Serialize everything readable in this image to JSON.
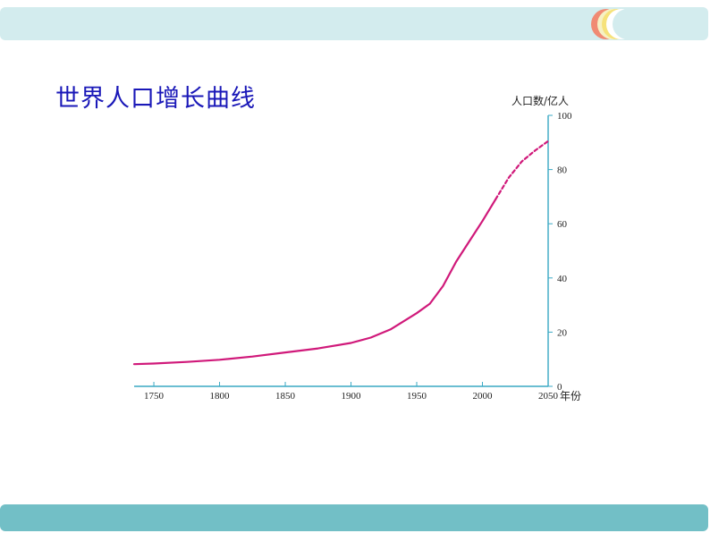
{
  "slide": {
    "title": "世界人口增长曲线",
    "colors": {
      "top_bar": "#d3ecee",
      "bottom_bar": "#72bfc6",
      "title": "#1a18b8",
      "curve": "#d0197a",
      "axis": "#3aa9c4"
    }
  },
  "chart_data": {
    "type": "line",
    "title": "",
    "xlabel": "年份",
    "ylabel": "人口数/亿人",
    "xlim": [
      1735,
      2050
    ],
    "ylim": [
      0,
      100
    ],
    "x_ticks": [
      "1750",
      "1800",
      "1850",
      "1900",
      "1950",
      "2000",
      "2050"
    ],
    "y_ticks": [
      "0",
      "20",
      "40",
      "60",
      "80",
      "100"
    ],
    "y_axis_position": "right",
    "grid": false,
    "series": [
      {
        "style": "solid",
        "points": [
          [
            1735,
            8.2
          ],
          [
            1750,
            8.4
          ],
          [
            1775,
            9.0
          ],
          [
            1800,
            9.8
          ],
          [
            1825,
            11.0
          ],
          [
            1850,
            12.5
          ],
          [
            1875,
            14.0
          ],
          [
            1900,
            16.0
          ],
          [
            1915,
            18.0
          ],
          [
            1930,
            21.0
          ],
          [
            1940,
            24.0
          ],
          [
            1950,
            27.0
          ],
          [
            1960,
            30.5
          ],
          [
            1970,
            37.0
          ],
          [
            1980,
            46.0
          ],
          [
            1990,
            53.5
          ],
          [
            2000,
            61.0
          ],
          [
            2010,
            69.0
          ]
        ]
      },
      {
        "style": "dashed",
        "points": [
          [
            2010,
            69.0
          ],
          [
            2020,
            77.0
          ],
          [
            2030,
            83.0
          ],
          [
            2040,
            87.0
          ],
          [
            2050,
            90.5
          ]
        ]
      }
    ]
  }
}
